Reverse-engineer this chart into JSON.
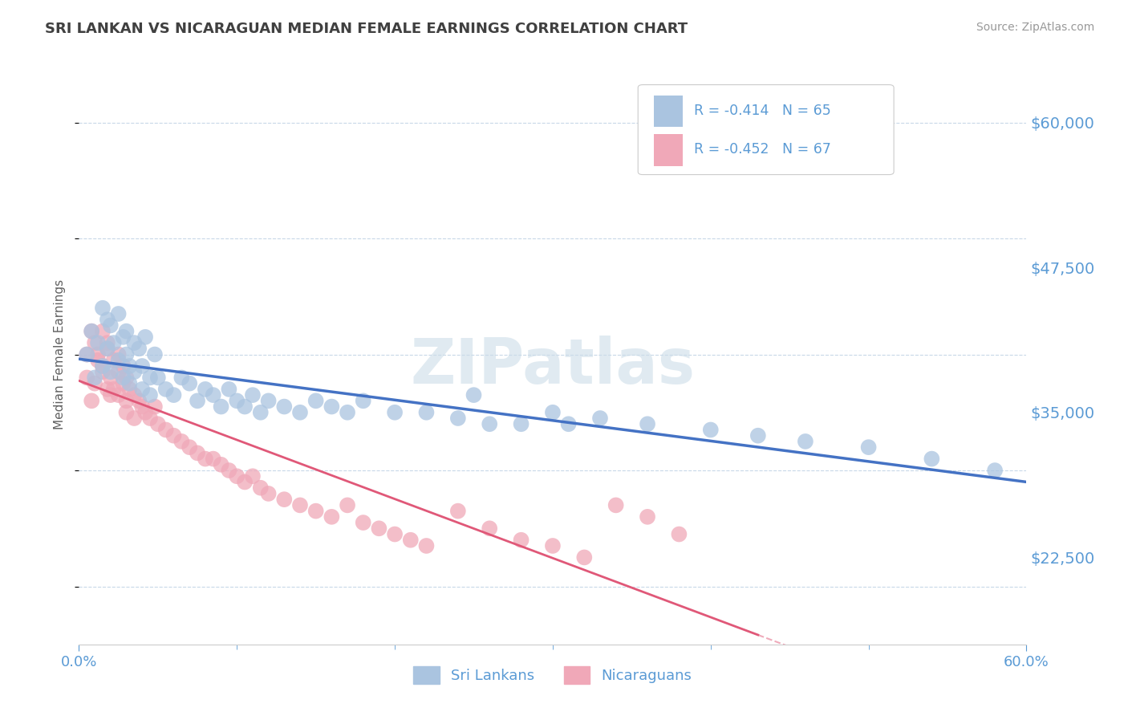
{
  "title": "SRI LANKAN VS NICARAGUAN MEDIAN FEMALE EARNINGS CORRELATION CHART",
  "source": "Source: ZipAtlas.com",
  "ylabel": "Median Female Earnings",
  "xlim": [
    0.0,
    0.6
  ],
  "ylim": [
    15000,
    65000
  ],
  "yticks": [
    22500,
    35000,
    47500,
    60000
  ],
  "ytick_labels": [
    "$22,500",
    "$35,000",
    "$47,500",
    "$60,000"
  ],
  "xtick_positions": [
    0.0,
    0.6
  ],
  "xtick_labels": [
    "0.0%",
    "60.0%"
  ],
  "xtick_minor": [
    0.1,
    0.2,
    0.3,
    0.4,
    0.5
  ],
  "series1_name": "Sri Lankans",
  "series1_color": "#aac4e0",
  "series1_line_color": "#4472c4",
  "series1_R": "-0.414",
  "series1_N": "65",
  "series2_name": "Nicaraguans",
  "series2_color": "#f0a8b8",
  "series2_line_color": "#e05878",
  "series2_R": "-0.452",
  "series2_N": "67",
  "title_color": "#404040",
  "axis_color": "#5b9bd5",
  "grid_color": "#c8d8e8",
  "sri_lankans_x": [
    0.005,
    0.008,
    0.01,
    0.012,
    0.015,
    0.015,
    0.018,
    0.018,
    0.02,
    0.02,
    0.022,
    0.025,
    0.025,
    0.028,
    0.028,
    0.03,
    0.03,
    0.032,
    0.032,
    0.035,
    0.035,
    0.038,
    0.04,
    0.04,
    0.042,
    0.045,
    0.045,
    0.048,
    0.05,
    0.055,
    0.06,
    0.065,
    0.07,
    0.075,
    0.08,
    0.085,
    0.09,
    0.095,
    0.1,
    0.105,
    0.11,
    0.115,
    0.12,
    0.13,
    0.14,
    0.15,
    0.16,
    0.17,
    0.18,
    0.2,
    0.22,
    0.24,
    0.26,
    0.28,
    0.3,
    0.33,
    0.36,
    0.4,
    0.43,
    0.46,
    0.5,
    0.54,
    0.58,
    0.25,
    0.31
  ],
  "sri_lankans_y": [
    40000,
    42000,
    38000,
    41000,
    39000,
    44000,
    43000,
    40500,
    42500,
    38500,
    41000,
    39500,
    43500,
    41500,
    38000,
    40000,
    42000,
    39000,
    37500,
    41000,
    38500,
    40500,
    39000,
    37000,
    41500,
    38000,
    36500,
    40000,
    38000,
    37000,
    36500,
    38000,
    37500,
    36000,
    37000,
    36500,
    35500,
    37000,
    36000,
    35500,
    36500,
    35000,
    36000,
    35500,
    35000,
    36000,
    35500,
    35000,
    36000,
    35000,
    35000,
    34500,
    34000,
    34000,
    35000,
    34500,
    34000,
    33500,
    33000,
    32500,
    32000,
    31000,
    30000,
    36500,
    34000
  ],
  "nicaraguans_x": [
    0.005,
    0.005,
    0.008,
    0.008,
    0.01,
    0.01,
    0.012,
    0.012,
    0.015,
    0.015,
    0.015,
    0.018,
    0.018,
    0.018,
    0.02,
    0.02,
    0.022,
    0.022,
    0.025,
    0.025,
    0.025,
    0.028,
    0.028,
    0.03,
    0.03,
    0.03,
    0.032,
    0.035,
    0.035,
    0.038,
    0.04,
    0.042,
    0.045,
    0.048,
    0.05,
    0.055,
    0.06,
    0.065,
    0.07,
    0.075,
    0.08,
    0.085,
    0.09,
    0.095,
    0.1,
    0.105,
    0.11,
    0.115,
    0.12,
    0.13,
    0.14,
    0.15,
    0.16,
    0.17,
    0.18,
    0.19,
    0.2,
    0.21,
    0.22,
    0.24,
    0.26,
    0.28,
    0.3,
    0.32,
    0.34,
    0.36,
    0.38
  ],
  "nicaraguans_y": [
    40000,
    38000,
    42000,
    36000,
    41000,
    37500,
    40000,
    39500,
    39000,
    42000,
    38500,
    41000,
    37000,
    40500,
    38000,
    36500,
    39500,
    37000,
    40000,
    38500,
    36500,
    39000,
    37500,
    38000,
    36000,
    35000,
    37000,
    36500,
    34500,
    36000,
    35500,
    35000,
    34500,
    35500,
    34000,
    33500,
    33000,
    32500,
    32000,
    31500,
    31000,
    31000,
    30500,
    30000,
    29500,
    29000,
    29500,
    28500,
    28000,
    27500,
    27000,
    26500,
    26000,
    27000,
    25500,
    25000,
    24500,
    24000,
    23500,
    26500,
    25000,
    24000,
    23500,
    22500,
    27000,
    26000,
    24500
  ],
  "legend_R1_text": "R = -0.414   N = 65",
  "legend_R2_text": "R = -0.452   N = 67"
}
